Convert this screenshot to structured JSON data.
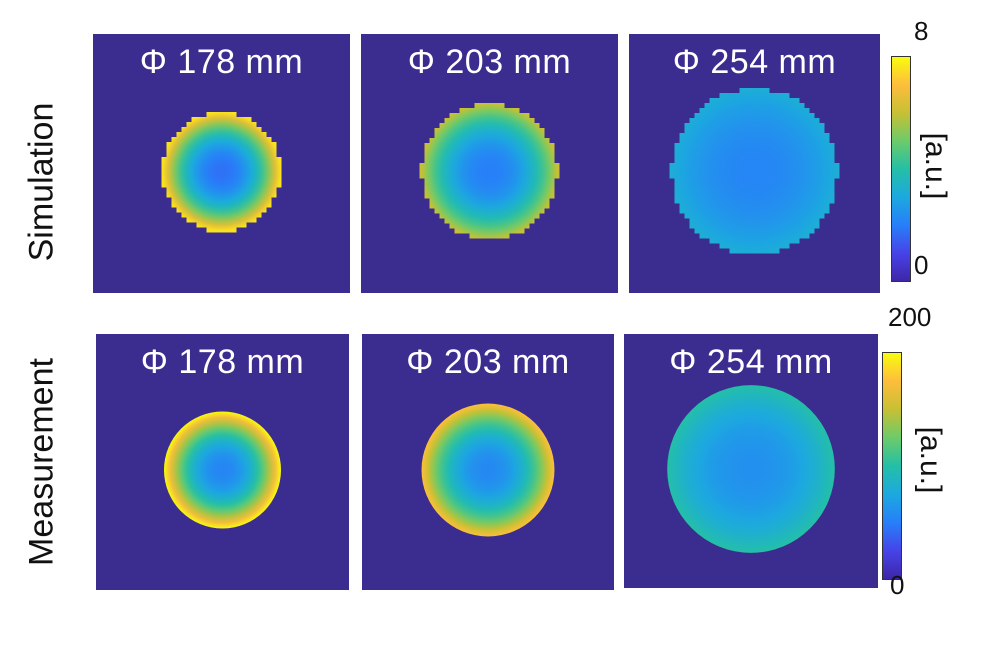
{
  "rows": [
    {
      "label": "Simulation",
      "style": "pixelated",
      "colorbar": {
        "max_label": "8",
        "min_label": "0",
        "unit": "[a.u.]"
      },
      "panels": [
        {
          "title": "Φ 178 mm",
          "diameter_mm": 178,
          "center_level": 0.22,
          "edge_level": 0.95
        },
        {
          "title": "Φ 203 mm",
          "diameter_mm": 203,
          "center_level": 0.25,
          "edge_level": 0.75
        },
        {
          "title": "Φ 254 mm",
          "diameter_mm": 254,
          "center_level": 0.27,
          "edge_level": 0.4
        }
      ]
    },
    {
      "label": "Measurement",
      "style": "smooth",
      "colorbar": {
        "max_label": "200",
        "min_label": "0",
        "unit": "[a.u.]"
      },
      "panels": [
        {
          "title": "Φ 178 mm",
          "diameter_mm": 178,
          "center_level": 0.27,
          "edge_level": 1.0
        },
        {
          "title": "Φ 203 mm",
          "diameter_mm": 203,
          "center_level": 0.28,
          "edge_level": 0.88
        },
        {
          "title": "Φ 254 mm",
          "diameter_mm": 254,
          "center_level": 0.3,
          "edge_level": 0.5
        }
      ]
    }
  ],
  "colormap": [
    "#3e26a8",
    "#4743e8",
    "#277ff9",
    "#1ca9df",
    "#24bfa7",
    "#6ccb6a",
    "#c7c034",
    "#fdbd3c",
    "#f9fb0e"
  ],
  "background_color": "#3b2d8f"
}
